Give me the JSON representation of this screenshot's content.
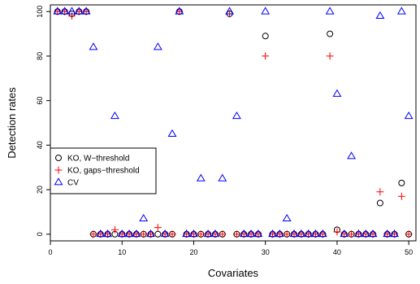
{
  "chart_data": {
    "type": "scatter",
    "xlabel": "Covariates",
    "ylabel": "Detection rates",
    "xlim": [
      0,
      51
    ],
    "ylim": [
      -3,
      103
    ],
    "x_ticks": [
      0,
      10,
      20,
      30,
      40,
      50
    ],
    "y_ticks": [
      0,
      20,
      40,
      60,
      80,
      100
    ],
    "legend_position": "left",
    "series": [
      {
        "name": "KO, W−threshold",
        "marker": "circle",
        "color": "#000000",
        "x": [
          1,
          2,
          3,
          4,
          5,
          6,
          7,
          8,
          9,
          10,
          11,
          12,
          13,
          14,
          15,
          16,
          17,
          18,
          19,
          20,
          21,
          22,
          23,
          24,
          25,
          26,
          27,
          28,
          29,
          30,
          31,
          32,
          33,
          34,
          35,
          36,
          37,
          38,
          39,
          40,
          41,
          42,
          43,
          44,
          45,
          46,
          47,
          48,
          49,
          50
        ],
        "y": [
          100,
          100,
          99,
          100,
          100,
          0,
          0,
          0,
          0,
          0,
          0,
          0,
          0,
          0,
          0,
          0,
          0,
          100,
          0,
          0,
          0,
          0,
          0,
          0,
          99,
          0,
          0,
          0,
          0,
          89,
          0,
          0,
          0,
          0,
          0,
          0,
          0,
          0,
          90,
          2,
          0,
          0,
          0,
          0,
          0,
          14,
          0,
          0,
          23,
          0
        ]
      },
      {
        "name": "KO, gaps−threshold",
        "marker": "plus",
        "color": "#ff0000",
        "x": [
          1,
          2,
          3,
          4,
          5,
          6,
          7,
          8,
          9,
          10,
          11,
          12,
          13,
          14,
          15,
          16,
          17,
          18,
          19,
          20,
          21,
          22,
          23,
          24,
          25,
          26,
          27,
          28,
          29,
          30,
          31,
          32,
          33,
          34,
          35,
          36,
          37,
          38,
          39,
          40,
          41,
          42,
          43,
          44,
          45,
          46,
          47,
          48,
          49,
          50
        ],
        "y": [
          100,
          100,
          98,
          100,
          100,
          0,
          0,
          0,
          2,
          0,
          0,
          0,
          0,
          0,
          3,
          0,
          0,
          100,
          0,
          0,
          0,
          0,
          0,
          0,
          99,
          0,
          0,
          0,
          0,
          80,
          0,
          0,
          0,
          0,
          0,
          0,
          0,
          0,
          80,
          1,
          0,
          0,
          0,
          0,
          0,
          19,
          0,
          0,
          17,
          0
        ]
      },
      {
        "name": "CV",
        "marker": "triangle",
        "color": "#0000ff",
        "x": [
          1,
          2,
          3,
          4,
          5,
          6,
          7,
          8,
          9,
          10,
          11,
          12,
          13,
          14,
          15,
          16,
          17,
          18,
          19,
          20,
          21,
          22,
          23,
          24,
          25,
          26,
          27,
          28,
          29,
          30,
          31,
          32,
          33,
          34,
          35,
          36,
          37,
          38,
          39,
          40,
          41,
          42,
          43,
          44,
          45,
          46,
          47,
          48,
          49,
          50
        ],
        "y": [
          100,
          100,
          100,
          100,
          100,
          84,
          0,
          0,
          53,
          0,
          0,
          0,
          7,
          0,
          84,
          0,
          45,
          100,
          0,
          0,
          25,
          0,
          0,
          25,
          100,
          53,
          0,
          0,
          0,
          100,
          0,
          0,
          7,
          0,
          0,
          0,
          0,
          0,
          100,
          63,
          0,
          35,
          0,
          0,
          0,
          98,
          0,
          0,
          100,
          53
        ]
      }
    ]
  }
}
